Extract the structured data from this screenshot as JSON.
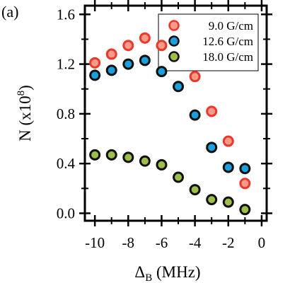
{
  "chart_data": {
    "type": "scatter",
    "panel_label": "(a)",
    "xlabel": {
      "main": "Δ",
      "sub": "B",
      "rest": " (MHz)"
    },
    "ylabel": {
      "main": "N (x10",
      "sup": "8",
      "rest": ")"
    },
    "xlim": [
      -10.6,
      0.3
    ],
    "ylim": [
      -0.06,
      1.67
    ],
    "xticks": [
      -10,
      -8,
      -6,
      -4,
      -2,
      0
    ],
    "xtick_labels": [
      "-10",
      "-8",
      "-6",
      "-4",
      "-2",
      "0"
    ],
    "yticks": [
      0.0,
      0.4,
      0.8,
      1.2,
      1.6
    ],
    "ytick_labels": [
      "0.0",
      "0.4",
      "0.8",
      "1.2",
      "1.6"
    ],
    "grid": false,
    "legend_position": "top-right",
    "series": [
      {
        "name": "9.0 G/cm",
        "fill": "#f79a8a",
        "stroke": "#e8392b",
        "x": [
          -10,
          -9,
          -8,
          -7,
          -6,
          -4,
          -3,
          -2,
          -1
        ],
        "y": [
          1.21,
          1.28,
          1.35,
          1.41,
          1.35,
          1.1,
          0.82,
          0.58,
          0.24
        ]
      },
      {
        "name": "12.6 G/cm",
        "fill": "#1aa0dd",
        "stroke": "#111111",
        "x": [
          -10,
          -9,
          -8,
          -7,
          -6,
          -5,
          -4,
          -3,
          -2,
          -1
        ],
        "y": [
          1.11,
          1.15,
          1.2,
          1.23,
          1.14,
          1.02,
          0.79,
          0.53,
          0.37,
          0.36
        ]
      },
      {
        "name": "18.0 G/cm",
        "fill": "#9bbf4a",
        "stroke": "#111111",
        "x": [
          -10,
          -9,
          -8,
          -7,
          -6,
          -5,
          -4,
          -3,
          -2,
          -1
        ],
        "y": [
          0.47,
          0.47,
          0.45,
          0.42,
          0.39,
          0.29,
          0.19,
          0.11,
          0.09,
          0.03
        ]
      }
    ]
  }
}
